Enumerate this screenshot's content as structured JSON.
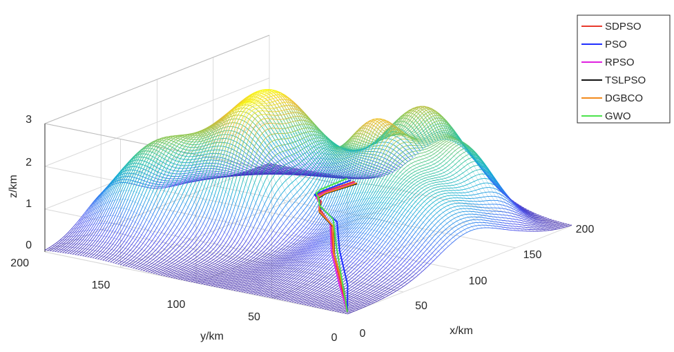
{
  "chart_data": {
    "type": "surface3d",
    "title": "",
    "xlabel": "x/km",
    "ylabel": "y/km",
    "zlabel": "z/km",
    "xlim": [
      0,
      200
    ],
    "ylim": [
      0,
      200
    ],
    "zlim": [
      0,
      3
    ],
    "xticks": [
      "0",
      "50",
      "100",
      "150",
      "200"
    ],
    "yticks": [
      "0",
      "50",
      "100",
      "150",
      "200"
    ],
    "zticks": [
      "0",
      "1",
      "2",
      "3"
    ],
    "grid": true,
    "legend_position": "top-right",
    "colormap": "parula",
    "peaks": [
      {
        "x": 60,
        "y": 170,
        "height": 2.0,
        "sigma": 24
      },
      {
        "x": 120,
        "y": 140,
        "height": 2.9,
        "sigma": 28
      },
      {
        "x": 80,
        "y": 125,
        "height": 1.6,
        "sigma": 16
      },
      {
        "x": 125,
        "y": 75,
        "height": 1.8,
        "sigma": 17
      },
      {
        "x": 178,
        "y": 82,
        "height": 2.3,
        "sigma": 22
      },
      {
        "x": 110,
        "y": 35,
        "height": 1.6,
        "sigma": 30
      },
      {
        "x": 160,
        "y": 40,
        "height": 1.3,
        "sigma": 17
      },
      {
        "x": 55,
        "y": 50,
        "height": 0.3,
        "sigma": 22
      }
    ],
    "series": [
      {
        "name": "SDPSO",
        "color": "#e8382b",
        "x": [
          0,
          35,
          75,
          100,
          110,
          125,
          140,
          160,
          195
        ],
        "y": [
          0,
          30,
          65,
          85,
          100,
          110,
          125,
          135,
          140
        ],
        "z": [
          0.05,
          0.05,
          0.1,
          0.25,
          0.35,
          0.25,
          0.1,
          0.05,
          0.05
        ]
      },
      {
        "name": "PSO",
        "color": "#1f2fff",
        "x": [
          0,
          38,
          78,
          104,
          112,
          126,
          142,
          162,
          196
        ],
        "y": [
          0,
          28,
          63,
          84,
          101,
          112,
          127,
          137,
          143
        ],
        "z": [
          0.05,
          0.05,
          0.1,
          0.25,
          0.35,
          0.25,
          0.1,
          0.05,
          0.05
        ]
      },
      {
        "name": "RPSO",
        "color": "#e020e0",
        "x": [
          0,
          36,
          76,
          102,
          108,
          122,
          138,
          158,
          193
        ],
        "y": [
          0,
          32,
          67,
          87,
          99,
          109,
          123,
          133,
          138
        ],
        "z": [
          0.05,
          0.05,
          0.1,
          0.25,
          0.35,
          0.25,
          0.1,
          0.05,
          0.05
        ]
      },
      {
        "name": "TSLPSO",
        "color": "#111111",
        "x": [
          0,
          33,
          72,
          98,
          106,
          120,
          137,
          157,
          192
        ],
        "y": [
          0,
          27,
          62,
          82,
          97,
          107,
          121,
          131,
          136
        ],
        "z": [
          0.05,
          0.05,
          0.1,
          0.25,
          0.35,
          0.25,
          0.1,
          0.05,
          0.05
        ]
      },
      {
        "name": "DGBCO",
        "color": "#f28a1c",
        "x": [
          0,
          34,
          73,
          99,
          107,
          121,
          138,
          158,
          193
        ],
        "y": [
          0,
          28,
          63,
          83,
          98,
          108,
          122,
          132,
          137
        ],
        "z": [
          0.05,
          0.05,
          0.1,
          0.25,
          0.35,
          0.25,
          0.1,
          0.05,
          0.05
        ]
      },
      {
        "name": "GWO",
        "color": "#4be34b",
        "x": [
          0,
          40,
          82,
          106,
          114,
          128,
          146,
          166,
          198
        ],
        "y": [
          0,
          33,
          68,
          88,
          103,
          114,
          129,
          141,
          147
        ],
        "z": [
          0.05,
          0.05,
          0.1,
          0.25,
          0.35,
          0.25,
          0.1,
          0.05,
          0.05
        ]
      }
    ]
  }
}
